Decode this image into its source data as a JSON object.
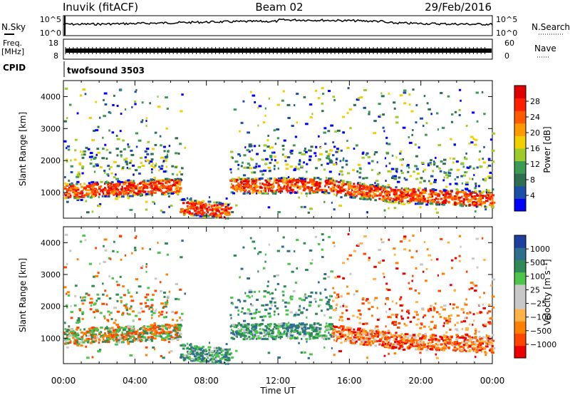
{
  "header": {
    "station": "Inuvik (fitACF)",
    "beam": "Beam 02",
    "date": "29/Feb/2016"
  },
  "top_panels": {
    "nsky_label": "N.Sky",
    "nsky_ticks": [
      "10^5",
      "10^0"
    ],
    "nsearch_label": "N.Search",
    "nsearch_ticks": [
      "10^5",
      "10^0"
    ],
    "freq_label": "Freq.",
    "freq_unit": "[MHz]",
    "freq_ticks": [
      "18",
      "8"
    ],
    "nave_label": "Nave",
    "nave_ticks": [
      "60",
      "0"
    ],
    "cpid_label": "CPID",
    "cpid_value": "twofsound 3503"
  },
  "colors": {
    "power_scale": [
      "#0000ff",
      "#1e4fa8",
      "#2f6e4f",
      "#3d9a55",
      "#9ccc2a",
      "#f0d000",
      "#ff9a00",
      "#ff5a00",
      "#ff2000",
      "#e00000"
    ],
    "velocity_scale": [
      "#ee0000",
      "#ff4500",
      "#ff7f00",
      "#ffb347",
      "#c8c8c8",
      "#c8c8c8",
      "#4dc54d",
      "#2e8b57",
      "#2f6e8f",
      "#1e3fa0"
    ]
  },
  "chart_data": [
    {
      "type": "heatmap",
      "title": "",
      "ylabel": "Slant Range [km]",
      "yticks": [
        "1000",
        "2000",
        "3000",
        "4000"
      ],
      "ylim": [
        200,
        4500
      ],
      "xlim": [
        "00:00",
        "24:00"
      ],
      "colorbar_label": "Power [dB]",
      "colorbar_ticks": [
        "4",
        "8",
        "12",
        "16",
        "20",
        "24",
        "28"
      ],
      "colorbar_range": [
        0,
        30
      ]
    },
    {
      "type": "heatmap",
      "title": "",
      "xlabel": "Time UT",
      "xticks": [
        "00:00",
        "04:00",
        "08:00",
        "12:00",
        "16:00",
        "20:00",
        "00:00"
      ],
      "ylabel": "Slant Range [km]",
      "yticks": [
        "1000",
        "2000",
        "3000",
        "4000"
      ],
      "ylim": [
        200,
        4500
      ],
      "colorbar_label": "Velocity [m s⁻¹]",
      "colorbar_ticks": [
        "1000",
        "500",
        "100",
        "25",
        "−25",
        "−100",
        "−500",
        "−1000"
      ]
    }
  ]
}
